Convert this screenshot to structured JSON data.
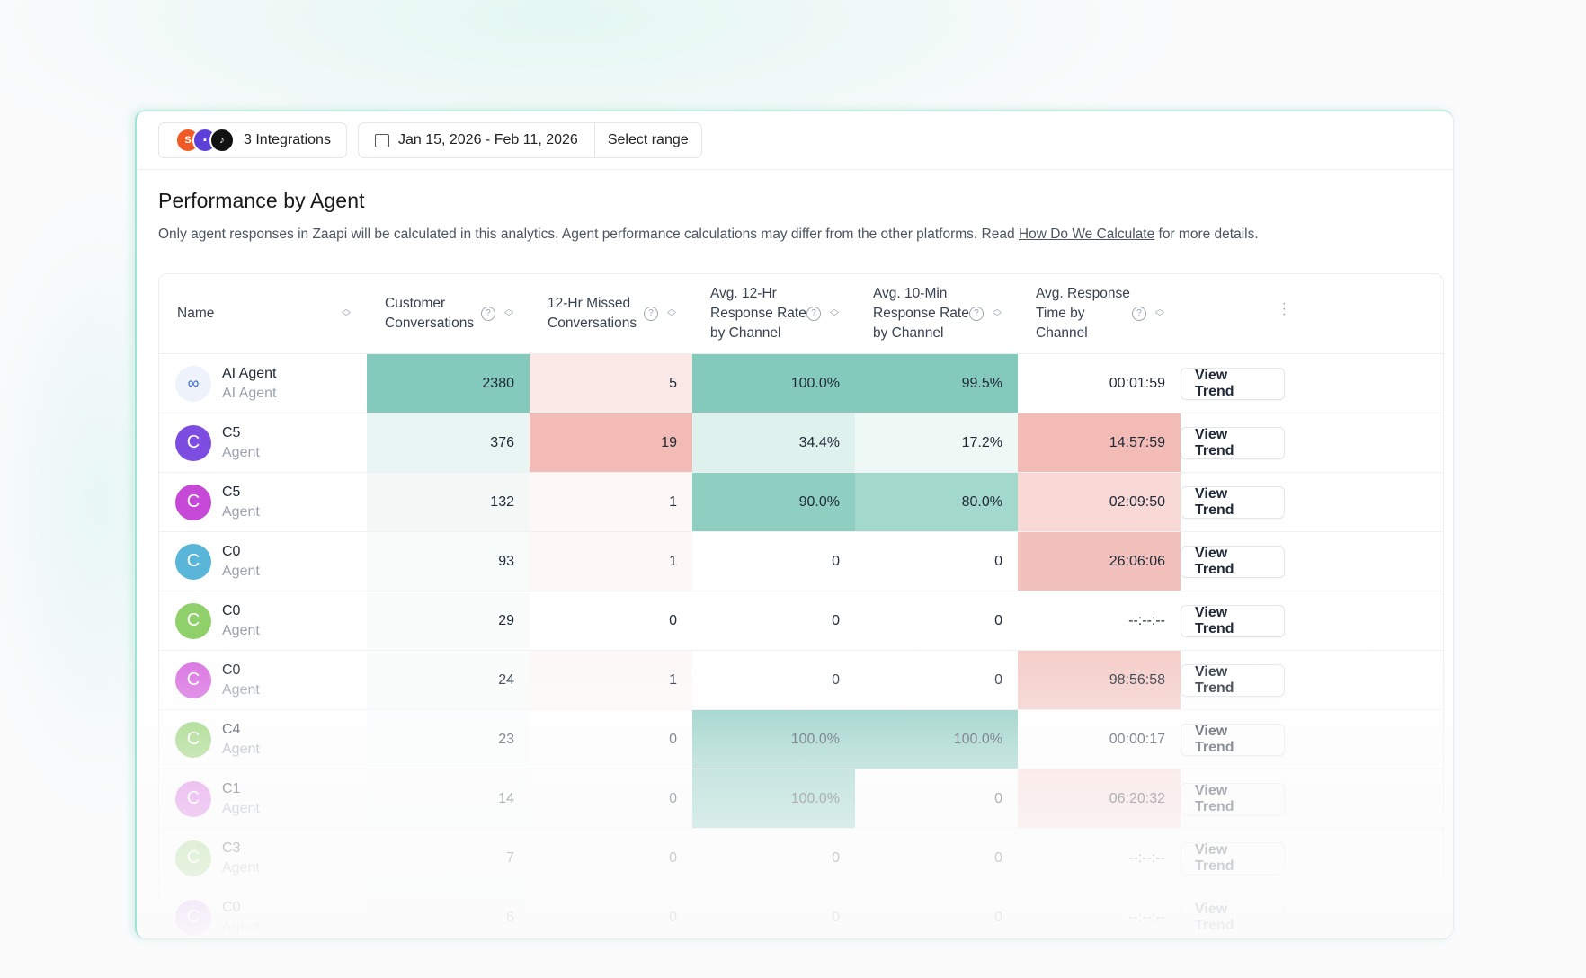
{
  "toolbar": {
    "integrations_label": "3 Integrations",
    "integration_logos": [
      "shopee-icon",
      "shop-icon",
      "tiktok-icon"
    ],
    "date_range": "Jan 15, 2026 - Feb 11, 2026",
    "select_range_label": "Select range"
  },
  "section": {
    "title": "Performance by Agent",
    "description_before": "Only agent responses in Zaapi will be calculated in this analytics. Agent performance calculations may differ from the other platforms. Read ",
    "description_link": "How Do We Calculate",
    "description_after": " for more details."
  },
  "table": {
    "columns": [
      {
        "label": "Name",
        "help": false
      },
      {
        "label": "Customer Conversations",
        "help": true
      },
      {
        "label": "12-Hr Missed Conversations",
        "help": true
      },
      {
        "label": "Avg. 12-Hr Response Rate by Channel",
        "help": true
      },
      {
        "label": "Avg. 10-Min Response Rate by Channel",
        "help": true
      },
      {
        "label": "Avg. Response Time by Channel",
        "help": true
      }
    ],
    "action_label": "View Trend",
    "rows": [
      {
        "avatar": "∞",
        "avatar_color": "#eef3fb",
        "name": "AI Agent",
        "role": "AI Agent",
        "conversations": "2380",
        "missed": "5",
        "rate12": "100.0%",
        "rate10": "99.5%",
        "time": "00:01:59"
      },
      {
        "avatar": "C",
        "avatar_color": "#7c4de0",
        "name": "C5",
        "role": "Agent",
        "conversations": "376",
        "missed": "19",
        "rate12": "34.4%",
        "rate10": "17.2%",
        "time": "14:57:59"
      },
      {
        "avatar": "C",
        "avatar_color": "#c548d6",
        "name": "C5",
        "role": "Agent",
        "conversations": "132",
        "missed": "1",
        "rate12": "90.0%",
        "rate10": "80.0%",
        "time": "02:09:50"
      },
      {
        "avatar": "C",
        "avatar_color": "#5ab6d8",
        "name": "C0",
        "role": "Agent",
        "conversations": "93",
        "missed": "1",
        "rate12": "0",
        "rate10": "0",
        "time": "26:06:06"
      },
      {
        "avatar": "C",
        "avatar_color": "#8fd06a",
        "name": "C0",
        "role": "Agent",
        "conversations": "29",
        "missed": "0",
        "rate12": "0",
        "rate10": "0",
        "time": "--:--:--"
      },
      {
        "avatar": "C",
        "avatar_color": "#d86de0",
        "name": "C0",
        "role": "Agent",
        "conversations": "24",
        "missed": "1",
        "rate12": "0",
        "rate10": "0",
        "time": "98:56:58"
      },
      {
        "avatar": "C",
        "avatar_color": "#8fd06a",
        "name": "C4",
        "role": "Agent",
        "conversations": "23",
        "missed": "0",
        "rate12": "100.0%",
        "rate10": "100.0%",
        "time": "00:00:17"
      },
      {
        "avatar": "C",
        "avatar_color": "#d86de0",
        "name": "C1",
        "role": "Agent",
        "conversations": "14",
        "missed": "0",
        "rate12": "100.0%",
        "rate10": "0",
        "time": "06:20:32"
      },
      {
        "avatar": "C",
        "avatar_color": "#8fd06a",
        "name": "C3",
        "role": "Agent",
        "conversations": "7",
        "missed": "0",
        "rate12": "0",
        "rate10": "0",
        "time": "--:--:--"
      },
      {
        "avatar": "C",
        "avatar_color": "#c07ae0",
        "name": "C0",
        "role": "Agent",
        "conversations": "6",
        "missed": "0",
        "rate12": "0",
        "rate10": "0",
        "time": "--:--:--"
      }
    ],
    "heat": {
      "conversations": [
        "#83c9bc",
        "#e9f5f2",
        "#f4f9f8",
        "#f7fbfa",
        "#fafcfc",
        "#fafcfc",
        "#fbfdfd",
        "#fcfdfd",
        "#fdfefe",
        "#fdfefe"
      ],
      "missed": [
        "#fbe9e8",
        "#f2bbb5",
        "#fdf8f7",
        "#fdf8f7",
        "#ffffff",
        "#fdf8f7",
        "#ffffff",
        "#ffffff",
        "#ffffff",
        "#ffffff"
      ],
      "rate12": [
        "#83c9bc",
        "#dff1ed",
        "#8fcfc2",
        "#ffffff",
        "#ffffff",
        "#ffffff",
        "#83c9bc",
        "#83c9bc",
        "#ffffff",
        "#ffffff"
      ],
      "rate10": [
        "#83c9bc",
        "#eef8f5",
        "#a3d8cd",
        "#ffffff",
        "#ffffff",
        "#ffffff",
        "#83c9bc",
        "#ffffff",
        "#ffffff",
        "#ffffff"
      ],
      "time": [
        "#ffffff",
        "#f2bbb5",
        "#f8d9d5",
        "#f3c1bb",
        "#ffffff",
        "#f5ccc7",
        "#ffffff",
        "#f8d9d5",
        "#ffffff",
        "#ffffff"
      ]
    }
  }
}
